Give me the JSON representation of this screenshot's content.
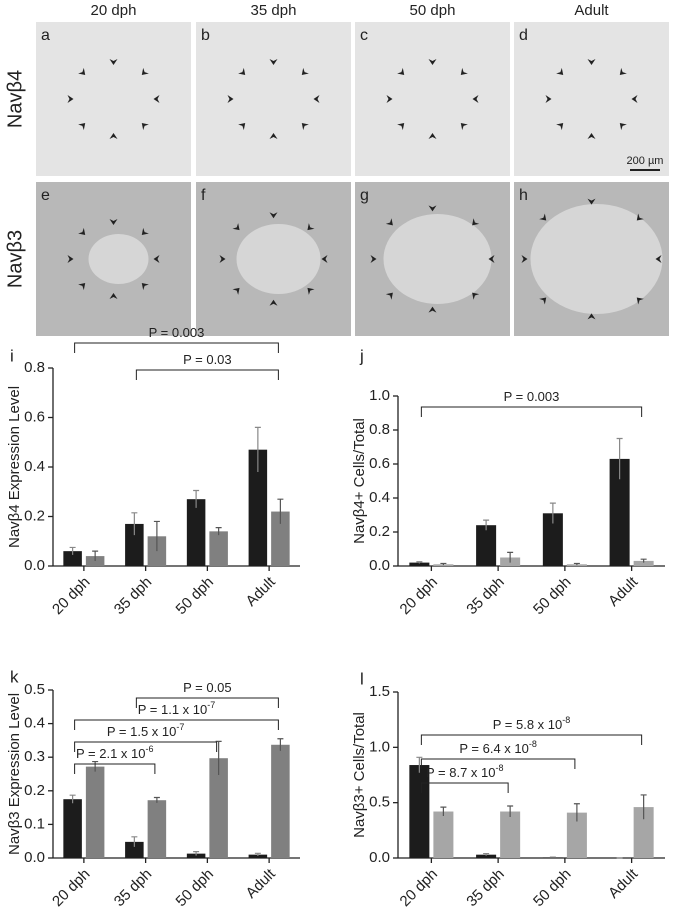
{
  "figure": {
    "column_headers": [
      "20 dph",
      "35 dph",
      "50 dph",
      "Adult"
    ],
    "row_labels": [
      "Navβ4",
      "Navβ3"
    ],
    "panel_letters": [
      [
        "a",
        "b",
        "c",
        "d"
      ],
      [
        "e",
        "f",
        "g",
        "h"
      ]
    ],
    "scale_bar": "200 µm"
  },
  "chart_data": [
    {
      "type": "bar",
      "panel": "i",
      "y_label": "Navβ4  Expression Level",
      "categories": [
        "20 dph",
        "35 dph",
        "50 dph",
        "Adult"
      ],
      "series": [
        {
          "color": "#1c1c1c",
          "values": [
            0.06,
            0.17,
            0.27,
            0.47
          ],
          "errors": [
            0.015,
            0.045,
            0.035,
            0.09
          ]
        },
        {
          "color": "#808080",
          "values": [
            0.04,
            0.12,
            0.14,
            0.22
          ],
          "errors": [
            0.02,
            0.06,
            0.015,
            0.05
          ]
        }
      ],
      "ylim": [
        0,
        0.8
      ],
      "yticks": [
        {
          "value": 0,
          "label": "0.0"
        },
        {
          "value": 0.2,
          "label": "0.2"
        },
        {
          "value": 0.4,
          "label": "0.4"
        },
        {
          "value": 0.6,
          "label": "0.6"
        },
        {
          "value": 0.8,
          "label": "0.8"
        }
      ],
      "annotations": [
        {
          "text": "P = 0.003",
          "between": [
            0,
            3
          ]
        },
        {
          "text": "P = 0.03",
          "between": [
            1,
            3
          ]
        }
      ]
    },
    {
      "type": "bar",
      "panel": "j",
      "y_label": "Navβ4+ Cells/Total",
      "categories": [
        "20 dph",
        "35 dph",
        "50 dph",
        "Adult"
      ],
      "series": [
        {
          "color": "#1c1c1c",
          "values": [
            0.02,
            0.24,
            0.31,
            0.63
          ],
          "errors": [
            0.005,
            0.03,
            0.06,
            0.12
          ]
        },
        {
          "color": "#a6a6a6",
          "values": [
            0.01,
            0.05,
            0.01,
            0.03
          ],
          "errors": [
            0.005,
            0.03,
            0.005,
            0.01
          ]
        }
      ],
      "ylim": [
        0,
        1
      ],
      "yticks": [
        {
          "value": 0,
          "label": "0.0"
        },
        {
          "value": 0.2,
          "label": "0.2"
        },
        {
          "value": 0.4,
          "label": "0.4"
        },
        {
          "value": 0.6,
          "label": "0.6"
        },
        {
          "value": 0.8,
          "label": "0.8"
        },
        {
          "value": 1,
          "label": "1.0"
        }
      ],
      "annotations": [
        {
          "text": "P = 0.003",
          "between": [
            0,
            3
          ]
        }
      ]
    },
    {
      "type": "bar",
      "panel": "k",
      "y_label": "Navβ3 Expression Level",
      "categories": [
        "20 dph",
        "35 dph",
        "50 dph",
        "Adult"
      ],
      "series": [
        {
          "color": "#1c1c1c",
          "values": [
            0.175,
            0.048,
            0.013,
            0.01
          ],
          "errors": [
            0.012,
            0.015,
            0.006,
            0.004
          ]
        },
        {
          "color": "#808080",
          "values": [
            0.272,
            0.172,
            0.297,
            0.337
          ],
          "errors": [
            0.015,
            0.008,
            0.05,
            0.018
          ]
        }
      ],
      "ylim": [
        0,
        0.5
      ],
      "yticks": [
        {
          "value": 0,
          "label": "0.0"
        },
        {
          "value": 0.1,
          "label": "0.1"
        },
        {
          "value": 0.2,
          "label": "0.2"
        },
        {
          "value": 0.3,
          "label": "0.3"
        },
        {
          "value": 0.4,
          "label": "0.4"
        },
        {
          "value": 0.5,
          "label": "0.5"
        }
      ],
      "annotations": [
        {
          "text": "P = 0.05",
          "between": [
            1,
            3
          ]
        },
        {
          "text": "P = 1.1 x 10",
          "superscript": "-7",
          "between": [
            0,
            3
          ]
        },
        {
          "text": "P = 1.5 x 10",
          "superscript": "-7",
          "between": [
            0,
            2
          ]
        },
        {
          "text": "P = 2.1 x 10",
          "superscript": "-6",
          "between": [
            0,
            1
          ]
        }
      ]
    },
    {
      "type": "bar",
      "panel": "l",
      "y_label": "Navβ3+ Cells/Total",
      "categories": [
        "20 dph",
        "35 dph",
        "50 dph",
        "Adult"
      ],
      "series": [
        {
          "color": "#1c1c1c",
          "values": [
            0.84,
            0.03,
            0.005,
            0
          ],
          "errors": [
            0.07,
            0.01,
            0.003,
            0
          ]
        },
        {
          "color": "#a6a6a6",
          "values": [
            0.42,
            0.42,
            0.41,
            0.46
          ],
          "errors": [
            0.04,
            0.05,
            0.08,
            0.11
          ]
        }
      ],
      "ylim": [
        0,
        1.5
      ],
      "yticks": [
        {
          "value": 0,
          "label": "0.0"
        },
        {
          "value": 0.5,
          "label": "0.5"
        },
        {
          "value": 1,
          "label": "1.0"
        },
        {
          "value": 1.5,
          "label": "1.5"
        }
      ],
      "annotations": [
        {
          "text": "P = 5.8 x 10",
          "superscript": "-8",
          "between": [
            0,
            3
          ]
        },
        {
          "text": "P = 6.4 x 10",
          "superscript": "-8",
          "between": [
            0,
            2
          ]
        },
        {
          "text": "P = 8.7 x 10",
          "superscript": "-8",
          "between": [
            0,
            1
          ]
        }
      ]
    }
  ]
}
